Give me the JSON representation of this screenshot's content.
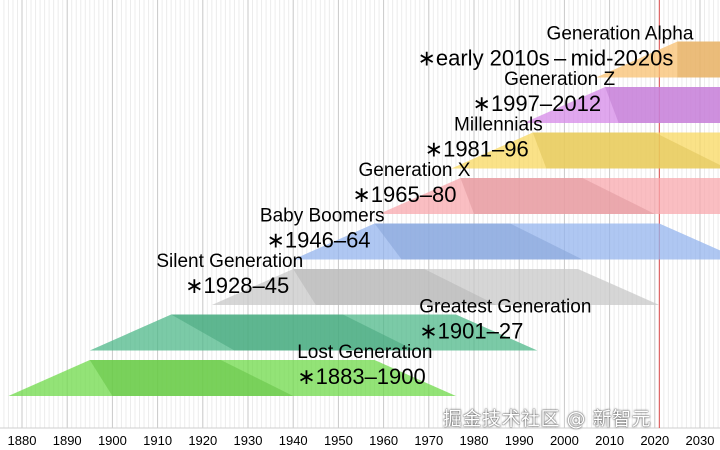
{
  "chart_data": {
    "type": "bar",
    "title": "",
    "xlabel": "",
    "ylabel": "",
    "x_range": [
      1876,
      2038
    ],
    "x_ticks": [
      1880,
      1890,
      1900,
      1910,
      1920,
      1930,
      1940,
      1950,
      1960,
      1970,
      1980,
      1990,
      2000,
      2010,
      2020,
      2030
    ],
    "current_year_marker": 2021,
    "grid": "vertical, every year",
    "series": [
      {
        "name": "Lost Generation",
        "range_label": "∗1883–1900",
        "start": 1883,
        "end": 1900,
        "color": "#6fd94a",
        "label_side": "right"
      },
      {
        "name": "Greatest Generation",
        "range_label": "∗1901–27",
        "start": 1901,
        "end": 1927,
        "color": "#4fb88a",
        "label_side": "right"
      },
      {
        "name": "Silent Generation",
        "range_label": "∗1928–45",
        "start": 1928,
        "end": 1945,
        "color": "#c8c8c8",
        "label_side": "left"
      },
      {
        "name": "Baby Boomers",
        "range_label": "∗1946–64",
        "start": 1946,
        "end": 1964,
        "color": "#94b4ee",
        "label_side": "left"
      },
      {
        "name": "Generation X",
        "range_label": "∗1965–80",
        "start": 1965,
        "end": 1980,
        "color": "#f8a8ad",
        "label_side": "left"
      },
      {
        "name": "Millennials",
        "range_label": "∗1981–96",
        "start": 1981,
        "end": 1996,
        "color": "#f8d860",
        "label_side": "left"
      },
      {
        "name": "Generation Z",
        "range_label": "∗1997–2012",
        "start": 1997,
        "end": 2012,
        "color": "#d68ae8",
        "label_side": "left"
      },
      {
        "name": "Generation Alpha",
        "range_label": "∗early 2010s – mid-2020s",
        "start": 2013,
        "end": 2025,
        "color": "#f8c070",
        "label_side": "left"
      }
    ]
  },
  "watermark": "掘金技术社区 @ 新智元"
}
